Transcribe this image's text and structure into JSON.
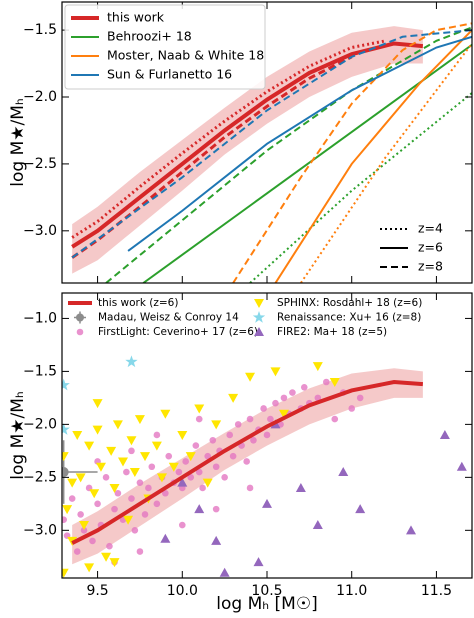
{
  "chart_data": [
    {
      "type": "line",
      "ylabel": "log  M★/Mₕ",
      "xlim": [
        9.29,
        11.71
      ],
      "ylim": [
        -3.39,
        -1.29
      ],
      "xticks": [
        9.5,
        {
          "value": 10,
          "label": "10.0"
        },
        10.5,
        {
          "value": 11,
          "label": "11.0"
        },
        11.5
      ],
      "xticklabels": false,
      "yticks": [
        {
          "value": -1.5,
          "label": "−1.5"
        },
        {
          "value": -2,
          "label": "−2.0"
        },
        {
          "value": -2.5,
          "label": "−2.5"
        },
        {
          "value": -3,
          "label": "−3.0"
        }
      ],
      "legend": "upper left",
      "series": [
        {
          "name": "this work",
          "color": "#d62728",
          "lines": [
            {
              "style": "solid",
              "x": [
                9.35,
                9.5,
                9.75,
                10.0,
                10.25,
                10.5,
                10.75,
                11.0,
                11.25,
                11.42
              ],
              "values": [
                -3.12,
                -3.0,
                -2.75,
                -2.5,
                -2.25,
                -2.02,
                -1.82,
                -1.68,
                -1.6,
                -1.62
              ],
              "band_lower": [
                -3.32,
                -3.22,
                -2.96,
                -2.7,
                -2.43,
                -2.2,
                -2.0,
                -1.85,
                -1.75,
                -1.75
              ],
              "band_upper": [
                -2.95,
                -2.82,
                -2.56,
                -2.32,
                -2.08,
                -1.85,
                -1.66,
                -1.52,
                -1.47,
                -1.5
              ]
            },
            {
              "style": "dotted",
              "x": [
                9.35,
                9.5,
                9.75,
                10.0,
                10.25,
                10.5,
                10.75,
                11.0,
                11.2
              ],
              "values": [
                -3.05,
                -2.93,
                -2.67,
                -2.42,
                -2.18,
                -1.96,
                -1.77,
                -1.63,
                -1.58
              ]
            },
            {
              "style": "dashed",
              "x": [
                9.35,
                9.5,
                9.75,
                10.0,
                10.25,
                10.5,
                10.75,
                11.0
              ],
              "values": [
                -3.2,
                -3.07,
                -2.82,
                -2.56,
                -2.3,
                -2.07,
                -1.86,
                -1.7
              ]
            }
          ]
        },
        {
          "name": "Behroozi+ 18",
          "color": "#2ca02c",
          "lines": [
            {
              "style": "solid",
              "x": [
                9.77,
                11.71
              ],
              "values": [
                -3.39,
                -1.61
              ]
            },
            {
              "style": "dashed",
              "x": [
                9.55,
                10.5,
                11.0,
                11.5,
                11.71
              ],
              "values": [
                -3.39,
                -2.4,
                -1.95,
                -1.58,
                -1.48
              ]
            },
            {
              "style": "dotted",
              "x": [
                10.4,
                11.0,
                11.71
              ],
              "values": [
                -3.39,
                -2.7,
                -1.97
              ]
            }
          ]
        },
        {
          "name": "Moster, Naab & White 18",
          "color": "#ff7f0e",
          "lines": [
            {
              "style": "solid",
              "x": [
                10.55,
                11.0,
                11.4,
                11.71
              ],
              "values": [
                -3.39,
                -2.5,
                -1.9,
                -1.5
              ]
            },
            {
              "style": "dashed",
              "x": [
                10.3,
                10.7,
                11.0,
                11.3,
                11.5,
                11.71
              ],
              "values": [
                -3.39,
                -2.6,
                -2.05,
                -1.65,
                -1.5,
                -1.45
              ]
            },
            {
              "style": "dotted",
              "x": [
                10.7,
                11.2,
                11.71
              ],
              "values": [
                -3.39,
                -2.45,
                -1.6
              ]
            }
          ]
        },
        {
          "name": "Sun & Furlanetto 16",
          "color": "#1f77b4",
          "lines": [
            {
              "style": "solid",
              "x": [
                9.68,
                10.0,
                10.5,
                11.0,
                11.5,
                11.71
              ],
              "values": [
                -3.15,
                -2.85,
                -2.35,
                -1.95,
                -1.63,
                -1.55
              ]
            },
            {
              "style": "dashed",
              "x": [
                9.35,
                10.0,
                10.5,
                11.0,
                11.3,
                11.71
              ],
              "values": [
                -3.2,
                -2.6,
                -2.1,
                -1.7,
                -1.55,
                -1.5
              ]
            }
          ]
        }
      ],
      "style_legend": [
        {
          "label": "z=4",
          "style": "dotted"
        },
        {
          "label": "z=6",
          "style": "solid"
        },
        {
          "label": "z=8",
          "style": "dashed"
        }
      ]
    },
    {
      "type": "scatter",
      "ylabel": "log  M★/Mₕ",
      "xlabel": "log  Mₕ  [M☉]",
      "xlim": [
        9.29,
        11.71
      ],
      "ylim": [
        -3.45,
        -0.76
      ],
      "xticks": [
        9.5,
        {
          "value": 10,
          "label": "10.0"
        },
        10.5,
        {
          "value": 11,
          "label": "11.0"
        },
        11.5
      ],
      "xticklabels": true,
      "yticks": [
        {
          "value": -1,
          "label": "−1.0"
        },
        {
          "value": -1.5,
          "label": "−1.5"
        },
        {
          "value": -2,
          "label": "−2.0"
        },
        {
          "value": -2.5,
          "label": "−2.5"
        },
        {
          "value": -3,
          "label": "−3.0"
        }
      ],
      "series": [
        {
          "name": "this work (z=6)",
          "color": "#d62728",
          "marker": "line",
          "x": [
            9.35,
            9.5,
            9.75,
            10.0,
            10.25,
            10.5,
            10.75,
            11.0,
            11.25,
            11.42
          ],
          "values": [
            -3.12,
            -3.0,
            -2.75,
            -2.5,
            -2.25,
            -2.02,
            -1.82,
            -1.68,
            -1.6,
            -1.62
          ],
          "band_lower": [
            -3.32,
            -3.22,
            -2.96,
            -2.7,
            -2.43,
            -2.2,
            -2.0,
            -1.85,
            -1.75,
            -1.75
          ],
          "band_upper": [
            -2.95,
            -2.82,
            -2.56,
            -2.32,
            -2.08,
            -1.85,
            -1.66,
            -1.52,
            -1.47,
            -1.5
          ]
        },
        {
          "name": "Madau, Weisz & Conroy 14",
          "color": "#8c8c8c",
          "marker": "errorbar",
          "x": [
            9.3
          ],
          "values": [
            -2.45
          ],
          "xerr": [
            0.2
          ],
          "yerr": [
            0.3
          ]
        },
        {
          "name": "FirstLight: Ceverino+ 17 (z=6)",
          "color": "#e377c2",
          "marker": "o",
          "x": [
            9.3,
            9.32,
            9.35,
            9.38,
            9.4,
            9.42,
            9.45,
            9.47,
            9.5,
            9.52,
            9.55,
            9.57,
            9.6,
            9.62,
            9.65,
            9.67,
            9.7,
            9.72,
            9.75,
            9.78,
            9.8,
            9.82,
            9.85,
            9.88,
            9.9,
            9.92,
            9.95,
            9.98,
            10.0,
            10.02,
            10.05,
            10.08,
            10.1,
            10.12,
            10.15,
            10.18,
            10.2,
            10.22,
            10.25,
            10.28,
            10.3,
            10.33,
            10.35,
            10.38,
            10.4,
            10.42,
            10.45,
            10.48,
            10.5,
            10.52,
            10.55,
            10.58,
            10.6,
            10.63,
            10.65,
            10.7,
            10.72,
            10.75,
            10.8,
            10.85,
            10.9,
            10.95,
            11.0,
            11.05,
            9.6,
            9.75,
            10.0,
            10.2,
            10.4,
            9.5,
            9.7,
            9.85,
            10.1
          ],
          "values": [
            -2.9,
            -3.05,
            -2.7,
            -3.2,
            -2.85,
            -3.0,
            -2.6,
            -3.1,
            -2.75,
            -2.95,
            -2.5,
            -3.15,
            -2.8,
            -2.65,
            -2.9,
            -2.45,
            -2.7,
            -3.0,
            -2.55,
            -2.85,
            -2.6,
            -2.4,
            -2.75,
            -2.5,
            -2.65,
            -2.3,
            -2.55,
            -2.45,
            -2.6,
            -2.35,
            -2.5,
            -2.2,
            -2.45,
            -2.6,
            -2.3,
            -2.15,
            -2.4,
            -2.25,
            -2.5,
            -2.1,
            -2.3,
            -2.0,
            -2.2,
            -2.35,
            -1.95,
            -2.15,
            -2.05,
            -1.85,
            -2.1,
            -1.95,
            -1.8,
            -2.0,
            -1.75,
            -1.9,
            -1.7,
            -1.85,
            -1.65,
            -1.8,
            -1.75,
            -1.6,
            -1.95,
            -1.7,
            -1.85,
            -1.75,
            -3.3,
            -3.2,
            -2.95,
            -2.8,
            -2.6,
            -2.35,
            -2.25,
            -2.1,
            -1.95
          ]
        },
        {
          "name": "SPHINX: Rosdahl+ 18 (z=6)",
          "color": "#ffe600",
          "marker": "v",
          "x": [
            9.3,
            9.32,
            9.35,
            9.38,
            9.4,
            9.42,
            9.45,
            9.48,
            9.5,
            9.52,
            9.55,
            9.58,
            9.6,
            9.62,
            9.65,
            9.68,
            9.7,
            9.72,
            9.75,
            9.78,
            9.8,
            9.85,
            9.88,
            9.9,
            9.95,
            10.0,
            10.05,
            10.1,
            10.15,
            10.2,
            10.3,
            10.4,
            10.55,
            10.6,
            10.8,
            10.9,
            9.3,
            9.45,
            9.6,
            9.5,
            9.35
          ],
          "values": [
            -2.3,
            -2.8,
            -3.1,
            -2.1,
            -2.5,
            -2.95,
            -2.2,
            -2.65,
            -2.05,
            -2.4,
            -3.25,
            -2.25,
            -2.6,
            -2.0,
            -2.35,
            -2.9,
            -2.15,
            -2.45,
            -1.95,
            -2.3,
            -2.7,
            -2.2,
            -2.5,
            -1.9,
            -2.4,
            -2.1,
            -2.3,
            -1.85,
            -2.55,
            -2.0,
            -1.75,
            -1.55,
            -1.5,
            -1.9,
            -1.45,
            -1.6,
            -3.4,
            -3.35,
            -3.3,
            -1.8,
            -2.55
          ]
        },
        {
          "name": "Renaissance: Xu+ 16 (z=8)",
          "color": "#87d8ea",
          "marker": "*",
          "x": [
            9.3,
            9.3,
            9.7
          ],
          "values": [
            -1.63,
            -2.05,
            -1.41
          ]
        },
        {
          "name": "FIRE2: Ma+ 18 (z=5)",
          "color": "#9467bd",
          "marker": "^",
          "x": [
            9.9,
            10.0,
            10.1,
            10.2,
            10.25,
            10.45,
            10.5,
            10.55,
            10.7,
            10.8,
            10.95,
            11.05,
            11.35,
            11.55,
            11.65
          ],
          "values": [
            -3.08,
            -2.55,
            -2.8,
            -3.1,
            -3.4,
            -3.3,
            -2.75,
            -2.0,
            -2.6,
            -2.95,
            -2.45,
            -2.8,
            -3.0,
            -2.1,
            -2.4
          ]
        }
      ]
    }
  ]
}
